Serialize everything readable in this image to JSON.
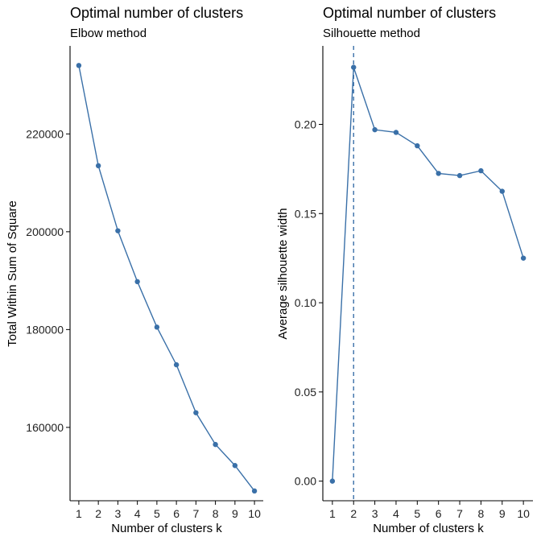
{
  "chart_data": [
    {
      "type": "line",
      "title": "Optimal number of clusters",
      "subtitle": "Elbow method",
      "xlabel": "Number of clusters k",
      "ylabel": "Total Within Sum of Square",
      "x": [
        1,
        2,
        3,
        4,
        5,
        6,
        7,
        8,
        9,
        10
      ],
      "series": [
        {
          "values": [
            234000,
            213500,
            200200,
            189800,
            180500,
            172800,
            163000,
            156500,
            152200,
            147000
          ]
        }
      ],
      "yticks": [
        160000,
        180000,
        200000,
        220000
      ],
      "ytick_labels": [
        "160000",
        "180000",
        "200000",
        "220000"
      ],
      "ylim": [
        145000,
        238000
      ],
      "xlim": [
        0.55,
        10.45
      ],
      "color": "#3a70a8",
      "grid": false
    },
    {
      "type": "line",
      "title": "Optimal number of clusters",
      "subtitle": "Silhouette method",
      "xlabel": "Number of clusters k",
      "ylabel": "Average silhouette width",
      "x": [
        1,
        2,
        3,
        4,
        5,
        6,
        7,
        8,
        9,
        10
      ],
      "series": [
        {
          "values": [
            0.0,
            0.232,
            0.197,
            0.1955,
            0.188,
            0.1725,
            0.1713,
            0.174,
            0.1625,
            0.125
          ]
        }
      ],
      "yticks": [
        0.0,
        0.05,
        0.1,
        0.15,
        0.2
      ],
      "ytick_labels": [
        "0.00",
        "0.05",
        "0.10",
        "0.15",
        "0.20"
      ],
      "ylim": [
        -0.011,
        0.244
      ],
      "xlim": [
        0.55,
        10.45
      ],
      "vline_x": 2,
      "color": "#3a70a8",
      "grid": false
    }
  ]
}
